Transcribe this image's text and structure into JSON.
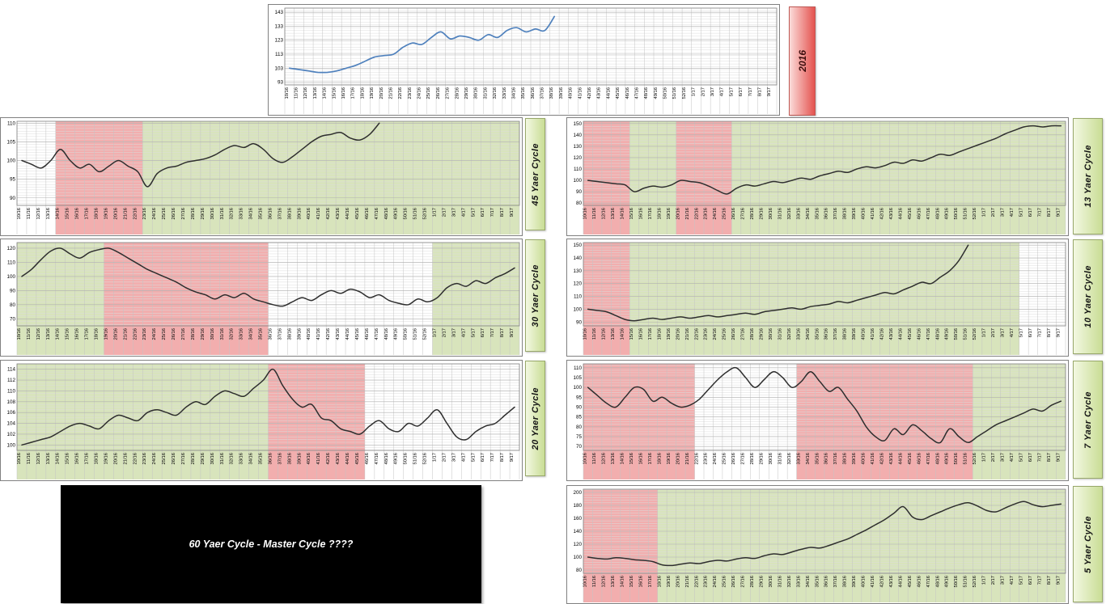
{
  "colors": {
    "band_red": "#f2aeae",
    "band_green": "#d8e4bc",
    "band_white": "#ffffff",
    "grid_minor": "#dcdcdc",
    "grid_vertical": "#c4c4c4",
    "grid_tick": "#b0b0b0",
    "chart_border": "#808080",
    "blue_line": "#4f81bd",
    "dark_line": "#2e2e2e"
  },
  "week_labels": [
    "10/16",
    "11/16",
    "12/16",
    "13/16",
    "14/16",
    "15/16",
    "16/16",
    "17/16",
    "18/16",
    "19/16",
    "20/16",
    "21/16",
    "22/16",
    "23/16",
    "24/16",
    "25/16",
    "26/16",
    "27/16",
    "28/16",
    "29/16",
    "30/16",
    "31/16",
    "32/16",
    "33/16",
    "34/16",
    "35/16",
    "36/16",
    "37/16",
    "38/16",
    "39/16",
    "40/16",
    "41/16",
    "42/16",
    "43/16",
    "44/16",
    "45/16",
    "46/16",
    "47/16",
    "48/16",
    "49/16",
    "50/16",
    "51/16",
    "52/16",
    "1/17",
    "2/17",
    "3/17",
    "4/17",
    "5/17",
    "6/17",
    "7/17",
    "8/17",
    "9/17"
  ],
  "year_box": {
    "label": "2016"
  },
  "master_box": {
    "text": "60 Yaer Cycle - Master Cycle ????"
  },
  "chart_data": [
    {
      "id": "top",
      "type": "line",
      "title": "",
      "line_color": "blue_line",
      "x_labels_ref": "week_labels",
      "y_ticks": [
        93,
        103,
        113,
        123,
        133,
        143
      ],
      "ylim": [
        91,
        146
      ],
      "bands": [],
      "values": [
        103,
        102,
        101,
        100,
        100,
        101,
        103,
        105,
        108,
        111,
        112,
        113,
        118,
        121,
        120,
        125,
        129,
        124,
        126,
        125,
        123,
        127,
        125,
        130,
        132,
        129,
        131,
        130,
        140
      ]
    },
    {
      "id": "c45",
      "type": "line",
      "title": "45 Yaer Cycle",
      "line_color": "dark_line",
      "x_labels_ref": "week_labels",
      "y_ticks": [
        90,
        95,
        100,
        105,
        110
      ],
      "ylim": [
        88,
        110.5
      ],
      "bands": [
        {
          "from": 0,
          "to": 3,
          "color": "white"
        },
        {
          "from": 4,
          "to": 12,
          "color": "red"
        },
        {
          "from": 13,
          "to": 51,
          "color": "green"
        }
      ],
      "values": [
        100,
        99,
        98,
        100,
        103,
        100,
        98,
        99,
        97,
        98.5,
        100,
        98.5,
        97,
        93,
        96.5,
        98,
        98.5,
        99.5,
        100,
        100.5,
        101.5,
        103,
        104,
        103.5,
        104.5,
        103,
        100.5,
        99.5,
        101,
        103,
        105,
        106.5,
        107,
        107.5,
        106,
        105.5,
        107,
        110
      ]
    },
    {
      "id": "c13",
      "type": "line",
      "title": "13 Yaer Cycle",
      "line_color": "dark_line",
      "x_labels_ref": "week_labels",
      "y_ticks": [
        80,
        90,
        100,
        110,
        120,
        130,
        140,
        150
      ],
      "ylim": [
        78,
        152
      ],
      "bands": [
        {
          "from": 0,
          "to": 4,
          "color": "red"
        },
        {
          "from": 5,
          "to": 9,
          "color": "green"
        },
        {
          "from": 10,
          "to": 15,
          "color": "red"
        },
        {
          "from": 16,
          "to": 51,
          "color": "green"
        }
      ],
      "values": [
        100,
        99,
        98,
        97,
        96,
        90,
        93,
        95,
        94,
        96,
        100,
        99,
        98,
        95,
        91,
        88,
        93,
        96,
        95,
        97,
        99,
        98,
        100,
        102,
        101,
        104,
        106,
        108,
        107,
        110,
        112,
        111,
        113,
        116,
        115,
        118,
        117,
        120,
        123,
        122,
        125,
        128,
        131,
        134,
        137,
        141,
        144,
        147,
        148,
        147,
        148,
        148
      ]
    },
    {
      "id": "c30",
      "type": "line",
      "title": "30 Yaer Cycle",
      "line_color": "dark_line",
      "x_labels_ref": "week_labels",
      "y_ticks": [
        70,
        80,
        90,
        100,
        110,
        120
      ],
      "ylim": [
        65,
        124
      ],
      "bands": [
        {
          "from": 0,
          "to": 8,
          "color": "green"
        },
        {
          "from": 9,
          "to": 25,
          "color": "red"
        },
        {
          "from": 26,
          "to": 42,
          "color": "white"
        },
        {
          "from": 43,
          "to": 51,
          "color": "green"
        }
      ],
      "values": [
        100,
        105,
        112,
        118,
        120,
        116,
        113,
        117,
        119,
        120,
        117,
        113,
        109,
        105,
        102,
        99,
        96,
        92,
        89,
        87,
        84,
        87,
        85,
        88,
        84,
        82,
        80,
        79,
        82,
        85,
        83,
        87,
        90,
        88,
        91,
        89,
        85,
        87,
        83,
        81,
        80,
        84,
        82,
        85,
        92,
        95,
        93,
        97,
        95,
        99,
        102,
        106
      ]
    },
    {
      "id": "c10",
      "type": "line",
      "title": "10 Yaer Cycle",
      "line_color": "dark_line",
      "x_labels_ref": "week_labels",
      "y_ticks": [
        90,
        100,
        110,
        120,
        130,
        140,
        150
      ],
      "ylim": [
        87,
        152
      ],
      "bands": [
        {
          "from": 0,
          "to": 4,
          "color": "red"
        },
        {
          "from": 5,
          "to": 46,
          "color": "green"
        },
        {
          "from": 47,
          "to": 51,
          "color": "white"
        }
      ],
      "values": [
        100,
        99,
        98,
        95,
        92,
        91,
        92,
        93,
        92,
        93,
        94,
        93,
        94,
        95,
        94,
        95,
        96,
        97,
        96,
        98,
        99,
        100,
        101,
        100,
        102,
        103,
        104,
        106,
        105,
        107,
        109,
        111,
        113,
        112,
        115,
        118,
        121,
        120,
        125,
        130,
        138,
        150
      ]
    },
    {
      "id": "c20",
      "type": "line",
      "title": "20 Yaer Cycle",
      "line_color": "dark_line",
      "x_labels_ref": "week_labels",
      "y_ticks": [
        100,
        102,
        104,
        106,
        108,
        110,
        112,
        114
      ],
      "ylim": [
        99,
        115
      ],
      "bands": [
        {
          "from": 0,
          "to": 25,
          "color": "green"
        },
        {
          "from": 26,
          "to": 35,
          "color": "red"
        },
        {
          "from": 36,
          "to": 51,
          "color": "white"
        }
      ],
      "values": [
        100,
        100.5,
        101,
        101.5,
        102.5,
        103.5,
        104,
        103.5,
        103,
        104.5,
        105.5,
        105,
        104.5,
        106,
        106.5,
        106,
        105.5,
        107,
        108,
        107.5,
        109,
        110,
        109.5,
        109,
        110.5,
        112,
        114,
        111,
        108.5,
        107,
        107.5,
        105,
        104.5,
        103,
        102.5,
        102,
        103.5,
        104.5,
        103,
        102.5,
        104,
        103.5,
        105,
        106.5,
        104,
        101.5,
        101,
        102.5,
        103.5,
        104,
        105.5,
        107
      ]
    },
    {
      "id": "c7",
      "type": "line",
      "title": "7 Yaer Cycle",
      "line_color": "dark_line",
      "x_labels_ref": "week_labels",
      "y_ticks": [
        70,
        75,
        80,
        85,
        90,
        95,
        100,
        105,
        110
      ],
      "ylim": [
        68,
        112
      ],
      "bands": [
        {
          "from": 0,
          "to": 11,
          "color": "red"
        },
        {
          "from": 12,
          "to": 22,
          "color": "white"
        },
        {
          "from": 23,
          "to": 41,
          "color": "red"
        },
        {
          "from": 42,
          "to": 51,
          "color": "green"
        }
      ],
      "values": [
        100,
        96,
        92,
        90,
        95,
        100,
        99,
        93,
        95,
        92,
        90,
        91,
        94,
        99,
        104,
        108,
        110,
        105,
        100,
        104,
        108,
        105,
        100,
        103,
        108,
        103,
        98,
        100,
        94,
        88,
        80,
        75,
        73,
        79,
        76,
        81,
        78,
        74,
        72,
        79,
        75,
        72,
        75,
        78,
        81,
        83,
        85,
        87,
        89,
        88,
        91,
        93
      ]
    },
    {
      "id": "c5",
      "type": "line",
      "title": "5 Yaer Cycle",
      "line_color": "dark_line",
      "x_labels_ref": "week_labels",
      "y_ticks": [
        80,
        100,
        120,
        140,
        160,
        180,
        200
      ],
      "ylim": [
        75,
        205
      ],
      "bands": [
        {
          "from": 0,
          "to": 7,
          "color": "red"
        },
        {
          "from": 8,
          "to": 51,
          "color": "green"
        }
      ],
      "values": [
        100,
        98,
        97,
        99,
        98,
        96,
        95,
        93,
        88,
        87,
        89,
        91,
        90,
        93,
        95,
        94,
        97,
        99,
        98,
        102,
        105,
        104,
        108,
        112,
        115,
        114,
        118,
        123,
        128,
        135,
        142,
        150,
        158,
        168,
        178,
        162,
        158,
        164,
        170,
        176,
        181,
        184,
        179,
        172,
        170,
        176,
        182,
        186,
        181,
        178,
        180,
        182
      ]
    }
  ]
}
